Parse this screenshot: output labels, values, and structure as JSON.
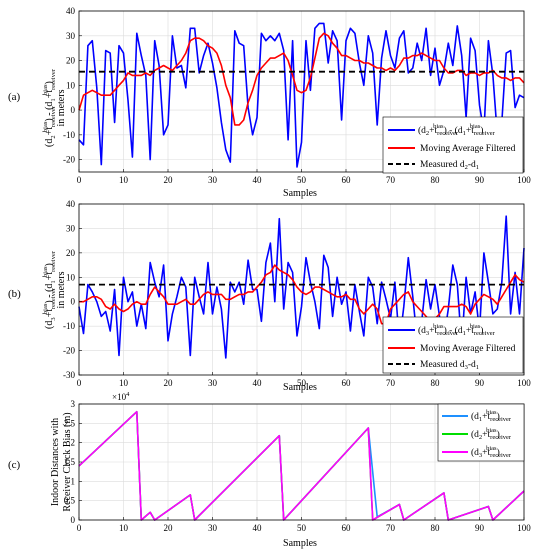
{
  "chart_data": [
    {
      "type": "line",
      "panel_label": "(a)",
      "xlabel": "Samples",
      "ylabel_main": "(d",
      "ylabel_units": "in meters",
      "xlim": [
        0,
        100
      ],
      "ylim": [
        -25,
        40
      ],
      "xticks": [
        0,
        10,
        20,
        30,
        40,
        50,
        60,
        70,
        80,
        90,
        100
      ],
      "yticks": [
        -20,
        -10,
        0,
        10,
        20,
        30,
        40
      ],
      "grid": true,
      "legend_position": "bottom-right",
      "series": [
        {
          "name": "(d2+t_bias_receiver) - (d1+t_bias_receiver)",
          "color": "#0000ff",
          "style": "solid",
          "values": [
            -12,
            -14,
            26,
            28,
            9,
            -22,
            24,
            23,
            -5,
            26,
            23,
            4,
            -19,
            31,
            22,
            14,
            -20,
            28,
            18,
            -10,
            -6,
            30,
            17,
            18,
            9,
            33,
            33,
            15,
            22,
            27,
            19,
            9,
            -5,
            -16,
            -21,
            32,
            27,
            26,
            1,
            -10,
            -3,
            31,
            28,
            30,
            28,
            31,
            24,
            -12,
            28,
            -23,
            -13,
            28,
            8,
            33,
            35,
            35,
            19,
            32,
            28,
            -4,
            28,
            33,
            31,
            19,
            10,
            30,
            23,
            -6,
            21,
            32,
            22,
            17,
            29,
            32,
            15,
            17,
            27,
            20,
            33,
            14,
            25,
            10,
            16,
            27,
            18,
            34,
            22,
            -3,
            29,
            24,
            2,
            -9,
            28,
            14,
            -10,
            -5,
            23,
            24,
            1,
            6,
            5
          ]
        },
        {
          "name": "Moving Average Filtered",
          "color": "#ff0000",
          "style": "solid",
          "values": [
            0,
            6,
            7,
            8,
            7,
            6,
            6,
            6,
            8,
            10,
            12,
            15,
            14,
            14,
            14,
            15,
            14,
            16,
            17,
            18,
            17,
            16,
            18,
            20,
            23,
            28,
            29,
            29,
            28,
            26,
            25,
            23,
            18,
            10,
            5,
            -6,
            -6,
            -4,
            3,
            8,
            14,
            17,
            19,
            21,
            21,
            22,
            23,
            20,
            14,
            8,
            7,
            8,
            13,
            21,
            29,
            31,
            30,
            27,
            25,
            22,
            22,
            21,
            20,
            20,
            19,
            19,
            18,
            17,
            17,
            16,
            17,
            16,
            18,
            21,
            21,
            22,
            22,
            23,
            22,
            21,
            20,
            20,
            17,
            15,
            15,
            16,
            16,
            14,
            15,
            15,
            14,
            15,
            15,
            16,
            14,
            13,
            13,
            12,
            13,
            13,
            11
          ]
        },
        {
          "name": "Measured  d2-d1",
          "color": "#000000",
          "style": "dashed",
          "values": [
            15.5
          ]
        }
      ]
    },
    {
      "type": "line",
      "panel_label": "(b)",
      "xlabel": "Samples",
      "ylabel_main": "(d",
      "ylabel_units": "in meters",
      "xlim": [
        0,
        100
      ],
      "ylim": [
        -30,
        40
      ],
      "xticks": [
        0,
        10,
        20,
        30,
        40,
        50,
        60,
        70,
        80,
        90,
        100
      ],
      "yticks": [
        -30,
        -20,
        -10,
        0,
        10,
        20,
        30,
        40
      ],
      "grid": true,
      "legend_position": "bottom-right",
      "series": [
        {
          "name": "(d3+t_bias_receiver) - (d1+t_bias_receiver)",
          "color": "#0000ff",
          "style": "solid",
          "values": [
            -2,
            -13,
            7,
            4,
            0,
            -6,
            -4,
            -12,
            5,
            -22,
            10,
            0,
            4,
            -10,
            -1,
            -11,
            16,
            8,
            2,
            15,
            -16,
            -5,
            2,
            10,
            6,
            -22,
            10,
            2,
            -5,
            16,
            -5,
            6,
            -3,
            -23,
            8,
            4,
            8,
            -1,
            17,
            5,
            5,
            -8,
            16,
            24,
            0,
            34,
            -3,
            16,
            12,
            -14,
            -2,
            18,
            8,
            0,
            -11,
            19,
            14,
            -6,
            10,
            -1,
            4,
            -12,
            7,
            -4,
            -14,
            10,
            6,
            -9,
            8,
            1,
            -7,
            8,
            -17,
            -2,
            18,
            2,
            -16,
            -8,
            9,
            -3,
            7,
            -6,
            -15,
            -3,
            15,
            7,
            -18,
            10,
            -5,
            4,
            -12,
            20,
            8,
            -5,
            -3,
            8,
            35,
            -5,
            12,
            -5,
            22
          ]
        },
        {
          "name": "Moving Average Filtered",
          "color": "#ff0000",
          "style": "solid",
          "values": [
            0,
            0,
            1,
            2,
            2,
            1,
            -2,
            -3,
            -1,
            -3,
            -4,
            -3,
            -1,
            0,
            -1,
            -1,
            3,
            6,
            4,
            2,
            -1,
            -1,
            -1,
            0,
            1,
            -1,
            -1,
            1,
            3,
            4,
            3,
            3,
            3,
            1,
            1,
            2,
            3,
            3,
            4,
            4,
            6,
            8,
            11,
            12,
            15,
            13,
            12,
            11,
            9,
            6,
            4,
            3,
            4,
            6,
            6,
            5,
            4,
            3,
            2,
            2,
            3,
            1,
            1,
            -3,
            -5,
            -3,
            -1,
            -3,
            -9,
            -9,
            -3,
            -1,
            1,
            3,
            4,
            0,
            -2,
            -4,
            -6,
            -8,
            -7,
            -5,
            -2,
            -2,
            -2,
            -2,
            -1,
            -2,
            -5,
            -1,
            1,
            3,
            2,
            1,
            -1,
            2,
            5,
            8,
            11,
            9,
            8
          ]
        },
        {
          "name": "Measured  d3-d1",
          "color": "#000000",
          "style": "dashed",
          "values": [
            7
          ]
        }
      ]
    },
    {
      "type": "line",
      "panel_label": "(c)",
      "xlabel": "Samples",
      "ylabel_line1": "Indoor Distances with",
      "ylabel_line2": "Receiver Clock Bias (m)",
      "y_multiplier": "×10",
      "y_multiplier_exp": "4",
      "xlim": [
        0,
        100
      ],
      "ylim": [
        0,
        3
      ],
      "xticks": [
        0,
        10,
        20,
        30,
        40,
        50,
        60,
        70,
        80,
        90,
        100
      ],
      "yticks": [
        0,
        0.5,
        1,
        1.5,
        2,
        2.5,
        3
      ],
      "ytick_labels": [
        "0",
        "0.5",
        "1",
        "1.5",
        "2",
        "2.5",
        "3"
      ],
      "grid": true,
      "legend_position": "top-right",
      "series": [
        {
          "name": "(d1+t_bias_receiver)",
          "color": "#1e90ff",
          "x": [
            0,
            13,
            14,
            16,
            17,
            25,
            26,
            45,
            46,
            65,
            67,
            72,
            73,
            82,
            83,
            92,
            93,
            100
          ],
          "y": [
            1.4,
            2.8,
            0,
            0.2,
            0,
            0.65,
            0,
            2.18,
            0,
            2.38,
            0.08,
            0.4,
            0,
            0.7,
            0,
            0.35,
            0,
            0.75
          ]
        },
        {
          "name": "(d2+t_bias_receiver)",
          "color": "#00dd00",
          "x": [
            0,
            13,
            14,
            16,
            17,
            25,
            26,
            45,
            46,
            65,
            66,
            72,
            73,
            82,
            83,
            92,
            93,
            100
          ],
          "y": [
            1.4,
            2.8,
            0,
            0.2,
            0,
            0.65,
            0,
            2.18,
            0,
            2.38,
            0,
            0.4,
            0,
            0.7,
            0,
            0.35,
            0,
            0.75
          ]
        },
        {
          "name": "(d3+t_bias_receiver)",
          "color": "#ff00ff",
          "x": [
            0,
            13,
            14,
            16,
            17,
            25,
            26,
            45,
            46,
            65,
            66,
            72,
            73,
            82,
            83,
            92,
            93,
            100
          ],
          "y": [
            1.4,
            2.8,
            0,
            0.2,
            0,
            0.65,
            0,
            2.18,
            0,
            2.38,
            0,
            0.4,
            0,
            0.7,
            0,
            0.35,
            0,
            0.75
          ]
        }
      ]
    }
  ]
}
